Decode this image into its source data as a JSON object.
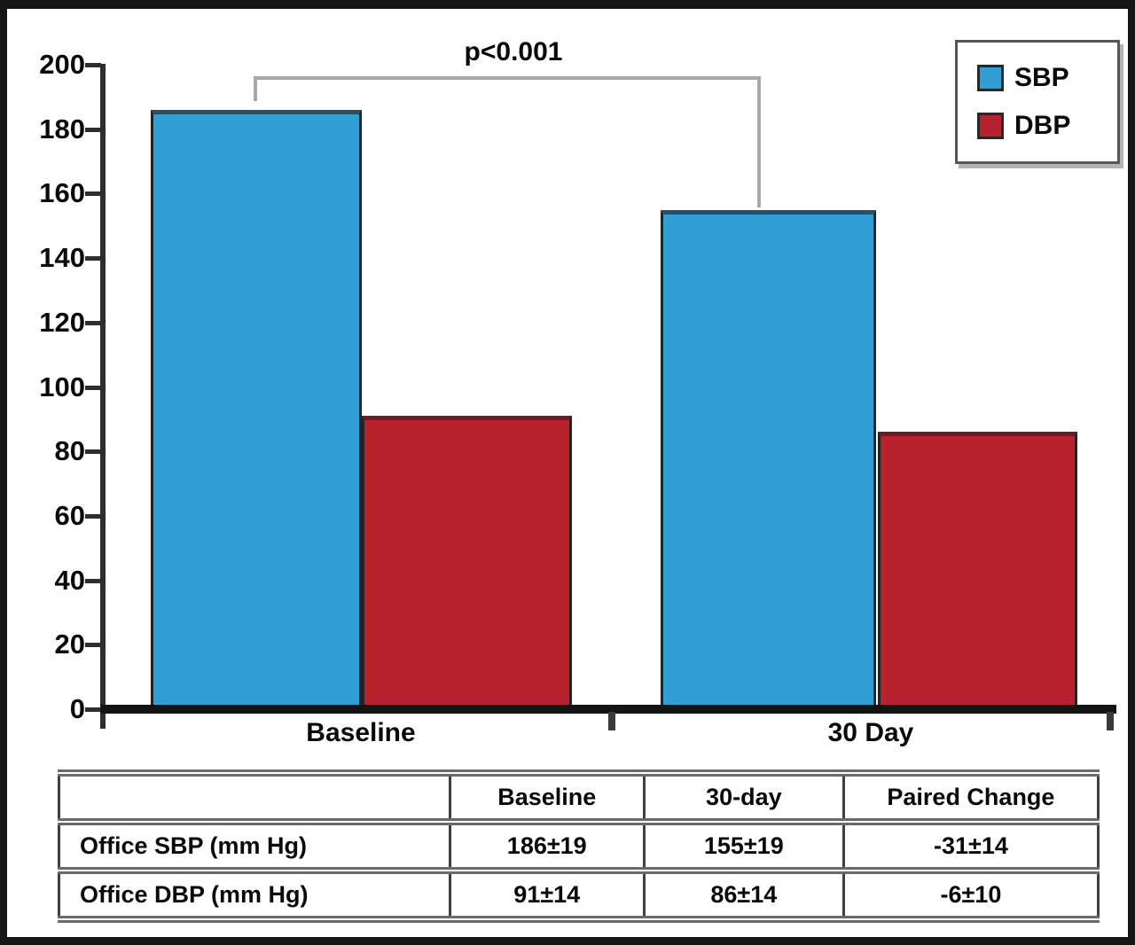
{
  "chart_data": {
    "type": "bar",
    "categories": [
      "Baseline",
      "30 Day"
    ],
    "series": [
      {
        "name": "SBP",
        "color": "#2f9fd4",
        "values": [
          186,
          155
        ]
      },
      {
        "name": "DBP",
        "color": "#b8222d",
        "values": [
          91,
          86
        ]
      }
    ],
    "ylim": [
      0,
      200
    ],
    "yticks": [
      0,
      20,
      40,
      60,
      80,
      100,
      120,
      140,
      160,
      180,
      200
    ],
    "ylabel": "",
    "xlabel": "",
    "title": "",
    "annotation": "p<0.001",
    "legend_position": "top-right",
    "grid": false
  },
  "table": {
    "headers": [
      "",
      "Baseline",
      "30-day",
      "Paired Change"
    ],
    "rows": [
      {
        "label": "Office SBP (mm Hg)",
        "values": [
          "186±19",
          "155±19",
          "-31±14"
        ]
      },
      {
        "label": "Office DBP (mm Hg)",
        "values": [
          "91±14",
          "86±14",
          "-6±10"
        ]
      }
    ]
  }
}
